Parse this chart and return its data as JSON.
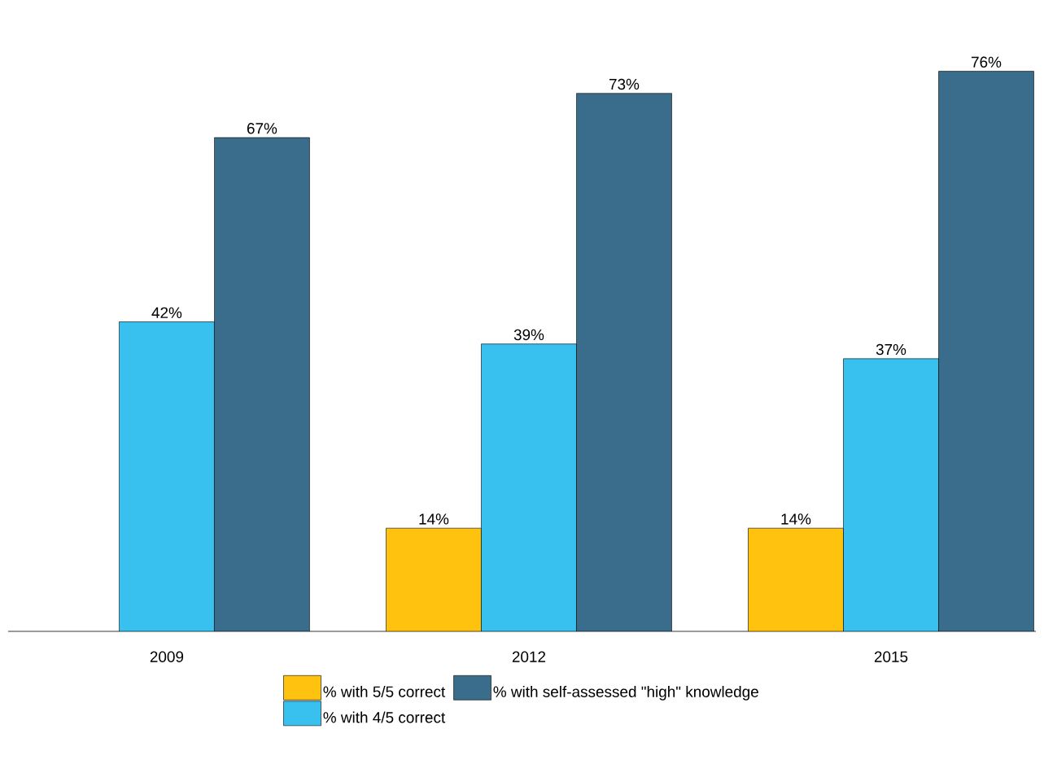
{
  "chart_data": {
    "type": "bar",
    "categories": [
      "2009",
      "2012",
      "2015"
    ],
    "series": [
      {
        "name": "% with 5/5 correct",
        "color": "#ffc20e",
        "values": [
          null,
          14,
          14
        ],
        "value_labels": [
          null,
          "14%",
          "14%"
        ]
      },
      {
        "name": "% with 4/5 correct",
        "color": "#38c0ee",
        "values": [
          42,
          39,
          37
        ],
        "value_labels": [
          "42%",
          "39%",
          "37%"
        ]
      },
      {
        "name": "% with self-assessed \"high\" knowledge",
        "color": "#3a6c8c",
        "values": [
          67,
          73,
          76
        ],
        "value_labels": [
          "67%",
          "73%",
          "76%"
        ]
      }
    ],
    "legend": "bottom"
  }
}
